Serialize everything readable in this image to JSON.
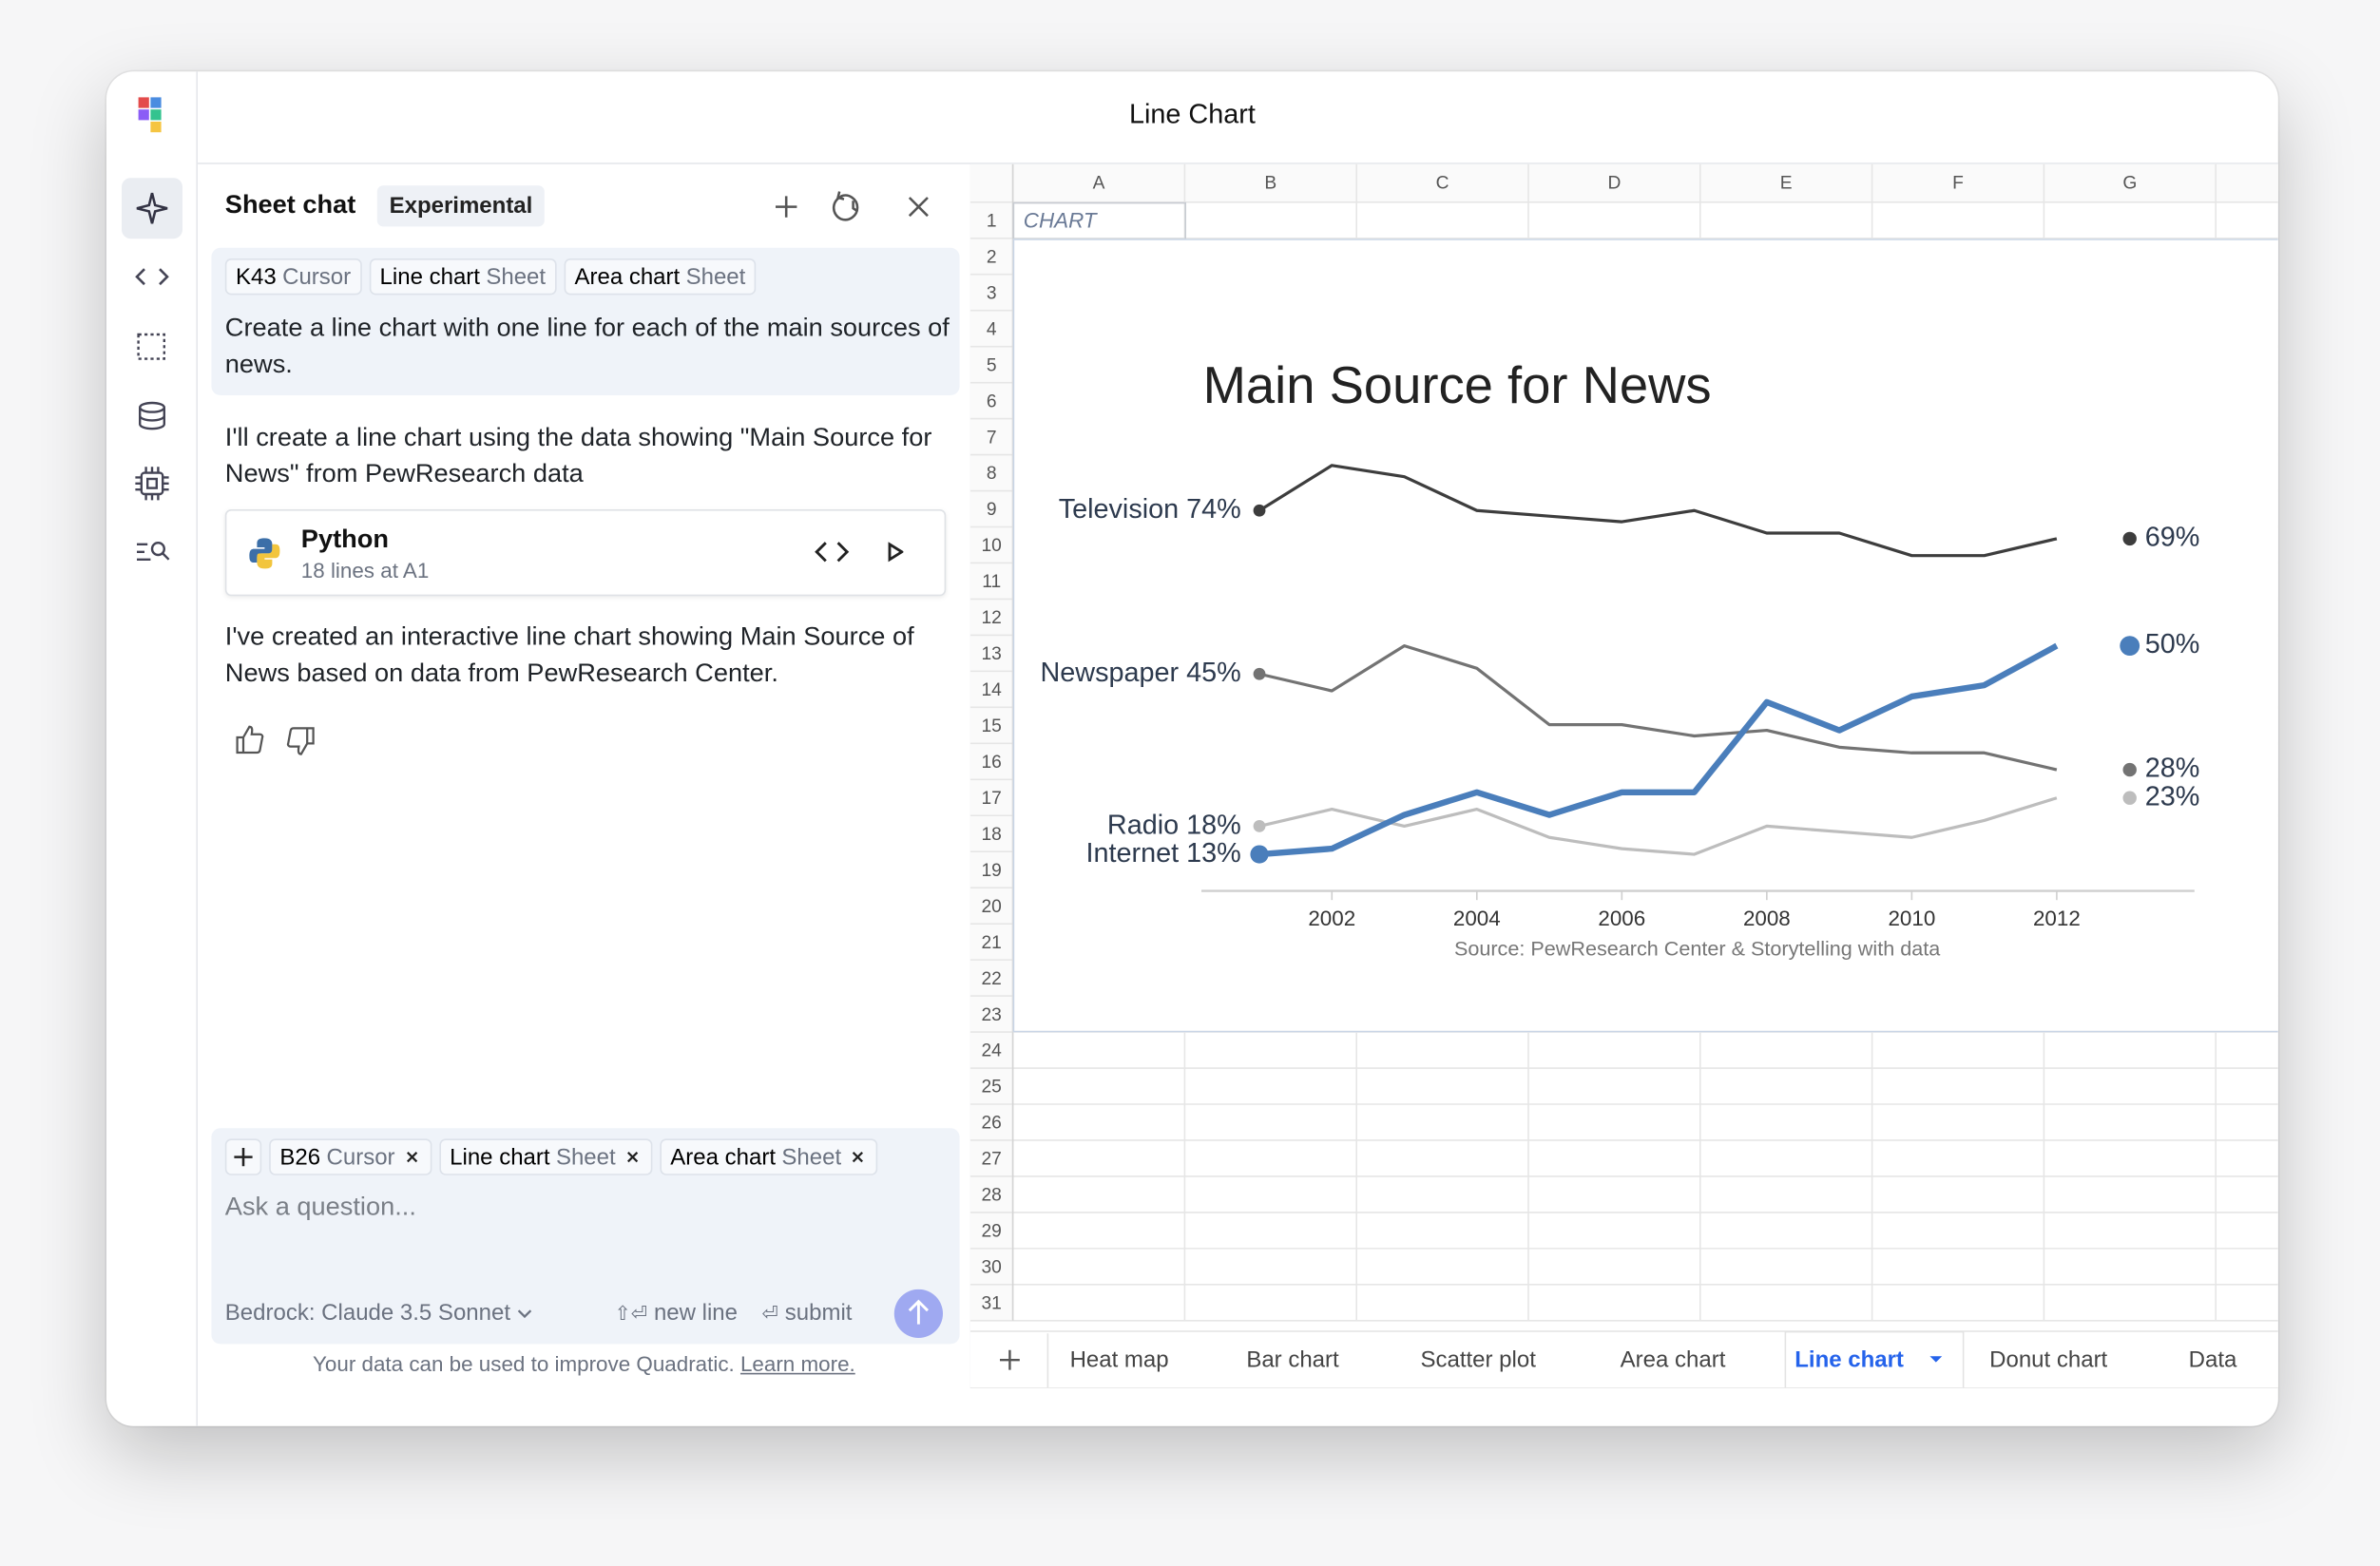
{
  "app": {
    "title": "Line Chart"
  },
  "chat": {
    "title": "Sheet chat",
    "badge": "Experimental",
    "user_message": {
      "context": [
        {
          "label": "K43",
          "kind": "Cursor"
        },
        {
          "label": "Line chart",
          "kind": "Sheet"
        },
        {
          "label": "Area chart",
          "kind": "Sheet"
        }
      ],
      "text": "Create a line chart with one line for each of the main sources of news."
    },
    "reply_1": "I'll create a line chart using the data showing \"Main Source for News\" from PewResearch data",
    "code_block": {
      "language": "Python",
      "detail": "18 lines at A1"
    },
    "reply_2": "I've created an interactive line chart showing Main Source of News based on data from PewResearch Center.",
    "input": {
      "context": [
        {
          "label": "B26",
          "kind": "Cursor"
        },
        {
          "label": "Line chart",
          "kind": "Sheet"
        },
        {
          "label": "Area chart",
          "kind": "Sheet"
        }
      ],
      "placeholder": "Ask a question...",
      "model": "Bedrock: Claude 3.5 Sonnet",
      "hints": [
        {
          "keys": "⇧⏎",
          "label": "new line"
        },
        {
          "keys": "⏎",
          "label": "submit"
        }
      ]
    },
    "disclaimer": "Your data can be used to improve Quadratic.",
    "learn_more": "Learn more."
  },
  "sheet": {
    "columns": [
      "A",
      "B",
      "C",
      "D",
      "E",
      "F",
      "G"
    ],
    "rows": [
      1,
      2,
      3,
      4,
      5,
      6,
      7,
      8,
      9,
      10,
      11,
      12,
      13,
      14,
      15,
      16,
      17,
      18,
      19,
      20,
      21,
      22,
      23,
      24,
      25,
      26,
      27,
      28,
      29,
      30,
      31
    ],
    "cell_a1": "CHART",
    "tabs": [
      "Heat map",
      "Bar chart",
      "Scatter plot",
      "Area chart",
      "Line chart",
      "Donut chart",
      "Data"
    ],
    "active_tab": 4
  },
  "chart_data": {
    "type": "line",
    "title": "Main Source for News",
    "source": "Source: PewResearch Center & Storytelling with data",
    "x": [
      2001,
      2002,
      2003,
      2004,
      2005,
      2006,
      2007,
      2008,
      2009,
      2010,
      2011,
      2012
    ],
    "xlim": [
      2000.2,
      2013.9
    ],
    "xticks": [
      2002,
      2004,
      2006,
      2008,
      2010,
      2012
    ],
    "ylim": [
      6.5,
      85
    ],
    "series": [
      {
        "name": "Television",
        "color": "#3d3d3d",
        "values": [
          74,
          82,
          80,
          74,
          73,
          72,
          74,
          70,
          70,
          66,
          66,
          69
        ],
        "value_labels": [
          "74%",
          null,
          null,
          null,
          null,
          null,
          null,
          null,
          null,
          null,
          null,
          "69%"
        ]
      },
      {
        "name": "Newspaper",
        "color": "#737373",
        "values": [
          45,
          42,
          50,
          46,
          36,
          36,
          34,
          35,
          32,
          31,
          31,
          28
        ],
        "value_labels": [
          "45%",
          null,
          null,
          null,
          null,
          null,
          null,
          null,
          null,
          null,
          null,
          "28%"
        ]
      },
      {
        "name": "Radio",
        "color": "#bdbdbd",
        "values": [
          18,
          21,
          18,
          21,
          16,
          14,
          13,
          18,
          17,
          16,
          19,
          23
        ],
        "value_labels": [
          "18%",
          null,
          null,
          null,
          null,
          null,
          null,
          null,
          null,
          null,
          null,
          "23%"
        ]
      },
      {
        "name": "Internet",
        "color": "#4a7ebb",
        "emphasis": true,
        "values": [
          13,
          14,
          20,
          24,
          20,
          24,
          24,
          40,
          35,
          41,
          43,
          50
        ],
        "value_labels": [
          "13%",
          null,
          null,
          null,
          null,
          null,
          null,
          null,
          null,
          null,
          null,
          "50%"
        ]
      }
    ]
  }
}
